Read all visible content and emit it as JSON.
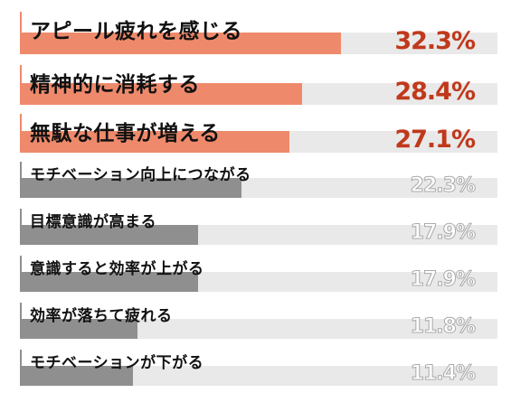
{
  "chart_data": {
    "type": "bar",
    "orientation": "horizontal",
    "categories": [
      "アピール疲れを感じる",
      "精神的に消耗する",
      "無駄な仕事が増える",
      "モチベーション向上につながる",
      "目標意識が高まる",
      "意識すると効率が上がる",
      "効率が落ちて疲れる",
      "モチベーションが下がる"
    ],
    "values": [
      32.3,
      28.4,
      27.1,
      22.3,
      17.9,
      17.9,
      11.8,
      11.4
    ],
    "value_labels": [
      "32.3%",
      "28.4%",
      "27.1%",
      "22.3%",
      "17.9%",
      "17.9%",
      "11.8%",
      "11.4%"
    ],
    "xlim": [
      0,
      48
    ],
    "grid": false,
    "legend": "none"
  },
  "colors": {
    "highlight_bar": "#ee8a6b",
    "highlight_text": "#c0391b",
    "normal_bar": "#8f8f8f",
    "track": "#e9e9e9"
  }
}
